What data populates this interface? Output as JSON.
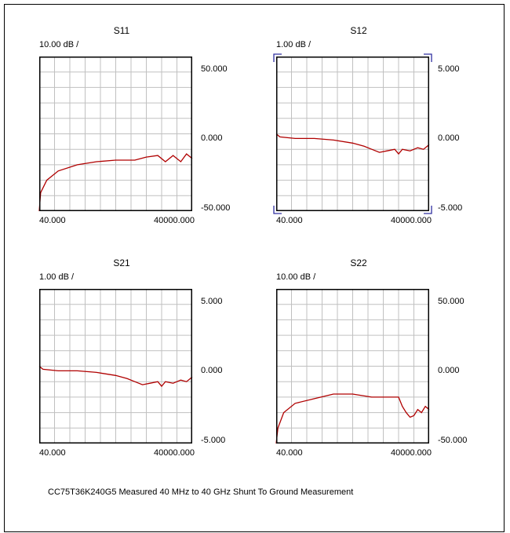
{
  "caption": "CC75T36K240G5 Measured 40 MHz to 40 GHz Shunt To Ground Measurement",
  "colors": {
    "trace": "#b00000",
    "grid": "#c0c0c0",
    "plot_border": "#000000",
    "marker": "#3030a0"
  },
  "chart_data": [
    {
      "type": "line",
      "title": "S11",
      "scale_label": "10.00 dB /",
      "ylim": [
        -50,
        50
      ],
      "y_ticks": [
        "50.000",
        "0.000",
        "-50.000"
      ],
      "x_ticks": [
        "40.000",
        "40000.000"
      ],
      "grid": true,
      "series": [
        {
          "x": [
            40,
            400,
            2000,
            5000,
            10000,
            15000,
            20000,
            25000,
            28000,
            31000,
            33000,
            35000,
            37000,
            38500,
            40000
          ],
          "values": [
            -50,
            -38,
            -30,
            -24,
            -20,
            -18,
            -17,
            -17,
            -15,
            -14,
            -18,
            -14,
            -18,
            -13,
            -16
          ]
        }
      ]
    },
    {
      "type": "line",
      "title": "S12",
      "scale_label": "1.00 dB /",
      "ylim": [
        -5,
        5
      ],
      "y_ticks": [
        "5.000",
        "0.000",
        "-5.000"
      ],
      "x_ticks": [
        "40.000",
        "40000.000"
      ],
      "grid": true,
      "markers": true,
      "series": [
        {
          "x": [
            40,
            1000,
            5000,
            10000,
            15000,
            20000,
            23000,
            25000,
            27000,
            29000,
            31000,
            32000,
            33000,
            35000,
            37000,
            38500,
            40000
          ],
          "values": [
            0,
            -0.2,
            -0.3,
            -0.3,
            -0.4,
            -0.6,
            -0.8,
            -1.0,
            -1.2,
            -1.1,
            -1.0,
            -1.3,
            -1.0,
            -1.1,
            -0.9,
            -1.0,
            -0.7
          ]
        }
      ]
    },
    {
      "type": "line",
      "title": "S21",
      "scale_label": "1.00 dB /",
      "ylim": [
        -5,
        5
      ],
      "y_ticks": [
        "5.000",
        "0.000",
        "-5.000"
      ],
      "x_ticks": [
        "40.000",
        "40000.000"
      ],
      "grid": true,
      "series": [
        {
          "x": [
            40,
            1000,
            5000,
            10000,
            15000,
            20000,
            23000,
            25000,
            27000,
            29000,
            31000,
            32000,
            33000,
            35000,
            37000,
            38500,
            40000
          ],
          "values": [
            0,
            -0.2,
            -0.3,
            -0.3,
            -0.4,
            -0.6,
            -0.8,
            -1.0,
            -1.2,
            -1.1,
            -1.0,
            -1.3,
            -1.0,
            -1.1,
            -0.9,
            -1.0,
            -0.7
          ]
        }
      ]
    },
    {
      "type": "line",
      "title": "S22",
      "scale_label": "10.00 dB /",
      "ylim": [
        -50,
        50
      ],
      "y_ticks": [
        "50.000",
        "0.000",
        "-50.000"
      ],
      "x_ticks": [
        "40.000",
        "40000.000"
      ],
      "grid": true,
      "series": [
        {
          "x": [
            40,
            500,
            2000,
            5000,
            10000,
            15000,
            20000,
            25000,
            30000,
            31000,
            32000,
            33000,
            34000,
            35000,
            36000,
            37000,
            38000,
            39000,
            40000
          ],
          "values": [
            -50,
            -40,
            -30,
            -24,
            -21,
            -18,
            -18,
            -20,
            -20,
            -20,
            -20,
            -26,
            -30,
            -33,
            -32,
            -28,
            -30,
            -26,
            -28
          ]
        }
      ]
    }
  ]
}
